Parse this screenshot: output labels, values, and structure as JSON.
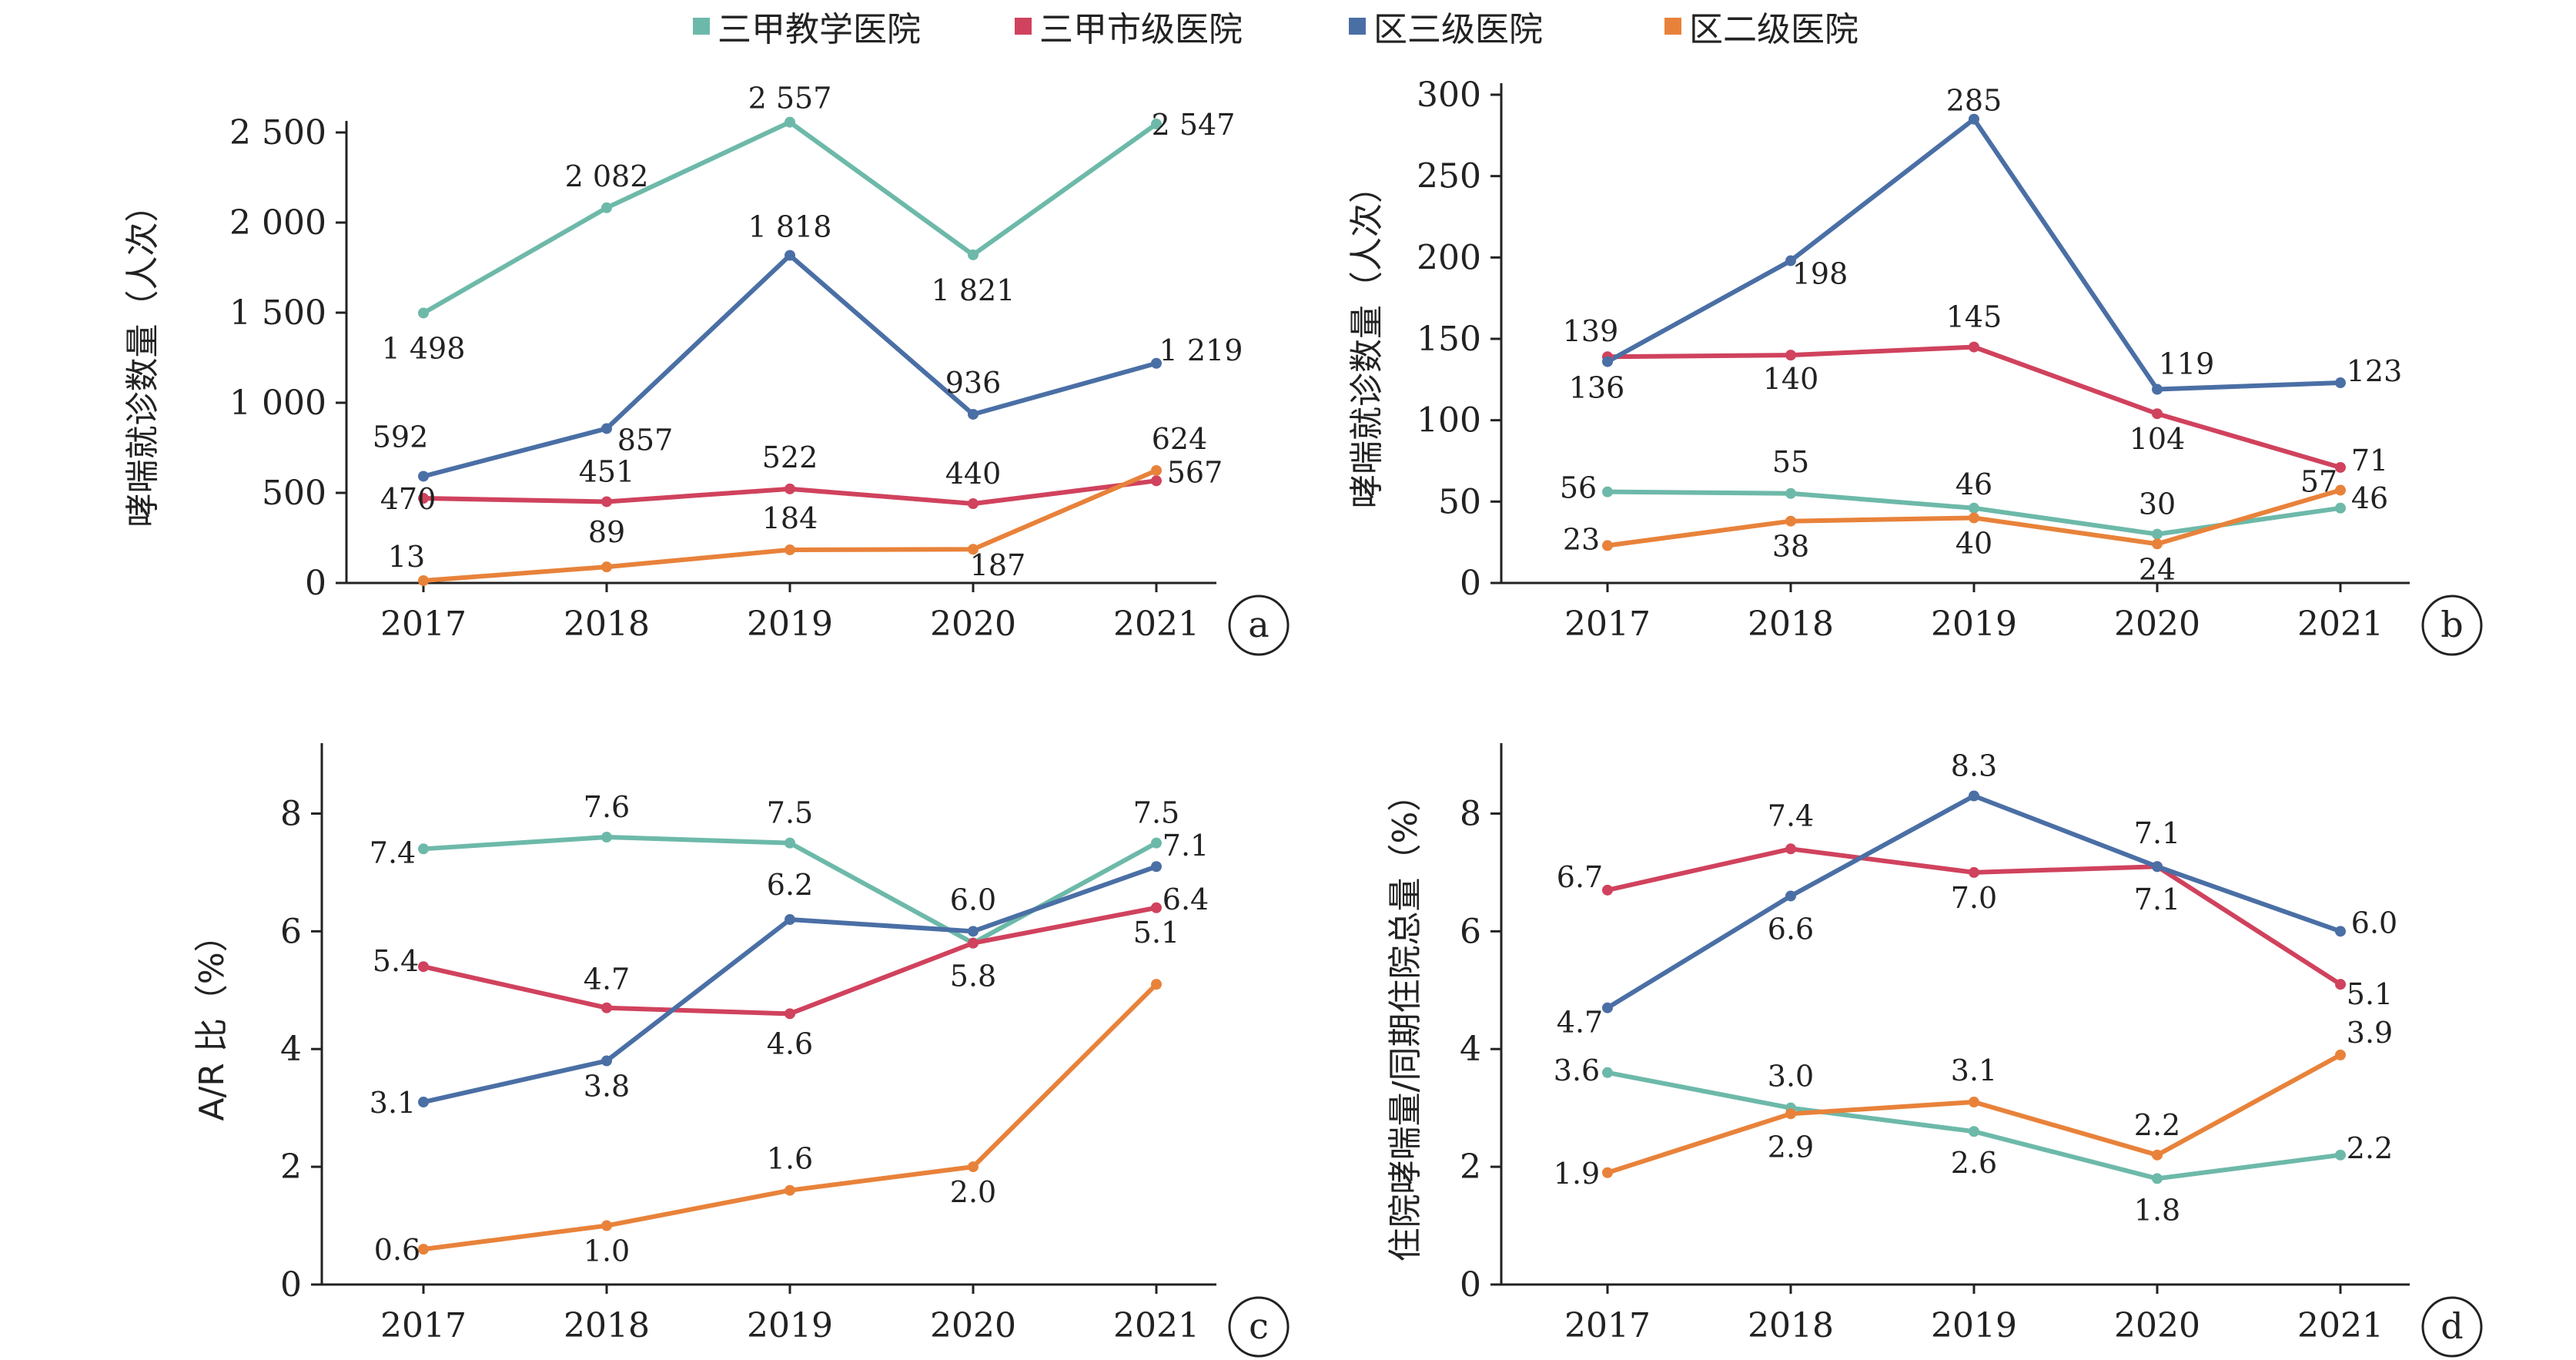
{
  "legend": [
    {
      "name": "三甲教学医院",
      "color": "#6db9a9"
    },
    {
      "name": "三甲市级医院",
      "color": "#d0425d"
    },
    {
      "name": "区三级医院",
      "color": "#4a6fa5"
    },
    {
      "name": "区二级医院",
      "color": "#e8823a"
    }
  ],
  "chart_data": [
    {
      "id": "a",
      "type": "line",
      "categories": [
        "2017",
        "2018",
        "2019",
        "2020",
        "2021"
      ],
      "ylabel": "哮喘就诊数量（人次）",
      "ylim": [
        0,
        2500
      ],
      "yticks": [
        0,
        500,
        1000,
        1500,
        2000,
        2500
      ],
      "ytick_labels": [
        "0",
        "500",
        "1 000",
        "1 500",
        "2 000",
        "2 500"
      ],
      "panel_label": "a",
      "series": [
        {
          "name": "三甲教学医院",
          "color": "#6db9a9",
          "values": [
            1498,
            2082,
            2557,
            1821,
            2547
          ],
          "labels": [
            "1 498",
            "2 082",
            "2 557",
            "1 821",
            "2 547"
          ]
        },
        {
          "name": "三甲市级医院",
          "color": "#d0425d",
          "values": [
            470,
            451,
            522,
            440,
            567
          ],
          "labels": [
            "470",
            "451",
            "522",
            "440",
            "567"
          ]
        },
        {
          "name": "区三级医院",
          "color": "#4a6fa5",
          "values": [
            592,
            857,
            1818,
            936,
            1219
          ],
          "labels": [
            "592",
            "857",
            "1 818",
            "936",
            "1 219"
          ]
        },
        {
          "name": "区二级医院",
          "color": "#e8823a",
          "values": [
            13,
            89,
            184,
            187,
            624
          ],
          "labels": [
            "13",
            "89",
            "184",
            "187",
            "624"
          ]
        }
      ]
    },
    {
      "id": "b",
      "type": "line",
      "categories": [
        "2017",
        "2018",
        "2019",
        "2020",
        "2021"
      ],
      "ylabel": "哮喘就诊数量（人次）",
      "ylim": [
        0,
        300
      ],
      "yticks": [
        0,
        50,
        100,
        150,
        200,
        250,
        300
      ],
      "ytick_labels": [
        "0",
        "50",
        "100",
        "150",
        "200",
        "250",
        "300"
      ],
      "panel_label": "b",
      "series": [
        {
          "name": "三甲教学医院",
          "color": "#6db9a9",
          "values": [
            56,
            55,
            46,
            30,
            46
          ],
          "labels": [
            "56",
            "55",
            "46",
            "30",
            "46"
          ]
        },
        {
          "name": "三甲市级医院",
          "color": "#d0425d",
          "values": [
            139,
            140,
            145,
            104,
            71
          ],
          "labels": [
            "139",
            "140",
            "145",
            "104",
            "71"
          ]
        },
        {
          "name": "区三级医院",
          "color": "#4a6fa5",
          "values": [
            136,
            198,
            285,
            119,
            123
          ],
          "labels": [
            "136",
            "198",
            "285",
            "119",
            "123"
          ]
        },
        {
          "name": "区二级医院",
          "color": "#e8823a",
          "values": [
            23,
            38,
            40,
            24,
            57
          ],
          "labels": [
            "23",
            "38",
            "40",
            "24",
            "57"
          ]
        }
      ]
    },
    {
      "id": "c",
      "type": "line",
      "categories": [
        "2017",
        "2018",
        "2019",
        "2020",
        "2021"
      ],
      "ylabel": "A/R 比（%）",
      "ylim": [
        0,
        9
      ],
      "yticks": [
        0,
        2,
        4,
        6,
        8
      ],
      "ytick_labels": [
        "0",
        "2",
        "4",
        "6",
        "8"
      ],
      "panel_label": "c",
      "series": [
        {
          "name": "三甲教学医院",
          "color": "#6db9a9",
          "values": [
            7.4,
            7.6,
            7.5,
            5.8,
            7.5
          ],
          "labels": [
            "7.4",
            "7.6",
            "7.5",
            "5.8",
            "7.5"
          ]
        },
        {
          "name": "三甲市级医院",
          "color": "#d0425d",
          "values": [
            5.4,
            4.7,
            4.6,
            5.8,
            6.4
          ],
          "labels": [
            "5.4",
            "4.7",
            "4.6",
            "",
            "6.4"
          ]
        },
        {
          "name": "区三级医院",
          "color": "#4a6fa5",
          "values": [
            3.1,
            3.8,
            6.2,
            6.0,
            7.1
          ],
          "labels": [
            "3.1",
            "3.8",
            "6.2",
            "6.0",
            "7.1"
          ]
        },
        {
          "name": "区二级医院",
          "color": "#e8823a",
          "values": [
            0.6,
            1.0,
            1.6,
            2.0,
            5.1
          ],
          "labels": [
            "0.6",
            "1.0",
            "1.6",
            "2.0",
            "5.1"
          ]
        }
      ]
    },
    {
      "id": "d",
      "type": "line",
      "categories": [
        "2017",
        "2018",
        "2019",
        "2020",
        "2021"
      ],
      "ylabel": "住院哮喘量/同期住院总量（%）",
      "ylim": [
        0,
        9
      ],
      "yticks": [
        0,
        2,
        4,
        6,
        8
      ],
      "ytick_labels": [
        "0",
        "2",
        "4",
        "6",
        "8"
      ],
      "panel_label": "d",
      "series": [
        {
          "name": "三甲教学医院",
          "color": "#6db9a9",
          "values": [
            3.6,
            3.0,
            2.6,
            1.8,
            2.2
          ],
          "labels": [
            "3.6",
            "3.0",
            "2.6",
            "1.8",
            "2.2"
          ]
        },
        {
          "name": "三甲市级医院",
          "color": "#d0425d",
          "values": [
            6.7,
            7.4,
            7.0,
            7.1,
            5.1
          ],
          "labels": [
            "6.7",
            "7.4",
            "7.0",
            "7.1",
            "5.1"
          ]
        },
        {
          "name": "区三级医院",
          "color": "#4a6fa5",
          "values": [
            4.7,
            6.6,
            8.3,
            7.1,
            6.0
          ],
          "labels": [
            "4.7",
            "6.6",
            "8.3",
            "7.1",
            "6.0"
          ]
        },
        {
          "name": "区二级医院",
          "color": "#e8823a",
          "values": [
            1.9,
            2.9,
            3.1,
            2.2,
            3.9
          ],
          "labels": [
            "1.9",
            "2.9",
            "3.1",
            "2.2",
            "3.9"
          ]
        }
      ]
    }
  ]
}
